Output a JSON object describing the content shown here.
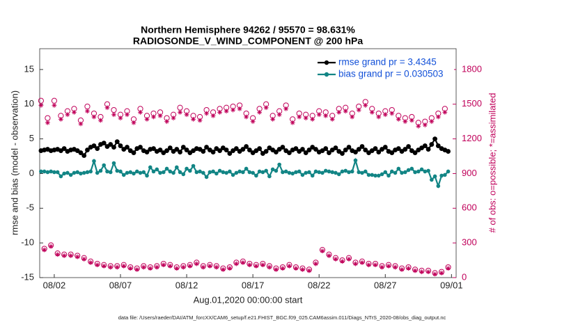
{
  "chart_data": {
    "type": "line",
    "title": "Northern Hemisphere 94262 / 95570 = 98.631%",
    "subtitle": "RADIOSONDE_V_WIND_COMPONENT @ 200 hPa",
    "xlabel": "Aug.01,2020 00:00:00 start",
    "ylabel": "rmse and bias (model - observation)",
    "y2label": "# of obs: o=possible; *=assimilated",
    "footnote": "data file: /Users/raeder/DAI/ATM_forcXX/CAM6_setup/f.e21.FHIST_BGC.f09_025.CAM6assim.011/Diags_NTrS_2020-08/obs_diag_output.nc",
    "legend": "upper right",
    "xlim": [
      -0.1,
      31.35
    ],
    "xticks": [
      {
        "value": 1,
        "label": "08/02"
      },
      {
        "value": 6,
        "label": "08/07"
      },
      {
        "value": 11,
        "label": "08/12"
      },
      {
        "value": 16,
        "label": "08/17"
      },
      {
        "value": 21,
        "label": "08/22"
      },
      {
        "value": 26,
        "label": "08/27"
      },
      {
        "value": 31,
        "label": "09/01"
      }
    ],
    "ylim": [
      -15,
      18
    ],
    "yticks": [
      -15,
      -10,
      -5,
      0,
      5,
      10,
      15
    ],
    "y2lim": [
      0,
      1980
    ],
    "y2ticks": [
      0,
      300,
      600,
      900,
      1200,
      1500,
      1800
    ],
    "x": [
      0,
      0.25,
      0.5,
      0.75,
      1,
      1.25,
      1.5,
      1.75,
      2,
      2.25,
      2.5,
      2.75,
      3,
      3.25,
      3.5,
      3.75,
      4,
      4.25,
      4.5,
      4.75,
      5,
      5.25,
      5.5,
      5.75,
      6,
      6.25,
      6.5,
      6.75,
      7,
      7.25,
      7.5,
      7.75,
      8,
      8.25,
      8.5,
      8.75,
      9,
      9.25,
      9.5,
      9.75,
      10,
      10.25,
      10.5,
      10.75,
      11,
      11.25,
      11.5,
      11.75,
      12,
      12.25,
      12.5,
      12.75,
      13,
      13.25,
      13.5,
      13.75,
      14,
      14.25,
      14.5,
      14.75,
      15,
      15.25,
      15.5,
      15.75,
      16,
      16.25,
      16.5,
      16.75,
      17,
      17.25,
      17.5,
      17.75,
      18,
      18.25,
      18.5,
      18.75,
      19,
      19.25,
      19.5,
      19.75,
      20,
      20.25,
      20.5,
      20.75,
      21,
      21.25,
      21.5,
      21.75,
      22,
      22.25,
      22.5,
      22.75,
      23,
      23.25,
      23.5,
      23.75,
      24,
      24.25,
      24.5,
      24.75,
      25,
      25.25,
      25.5,
      25.75,
      26,
      26.25,
      26.5,
      26.75,
      27,
      27.25,
      27.5,
      27.75,
      28,
      28.25,
      28.5,
      28.75,
      29,
      29.25,
      29.5,
      29.75,
      30,
      30.25,
      30.5,
      30.75
    ],
    "series": [
      {
        "name": "rmse grand pr = 3.4345",
        "color": "#000000",
        "marker": "star",
        "values": [
          3.3,
          3.4,
          3.5,
          3.3,
          3.4,
          3.5,
          3.3,
          3.6,
          3.2,
          3.4,
          3.5,
          3.3,
          3.0,
          2.6,
          3.4,
          3.8,
          4.0,
          3.6,
          4.2,
          4.4,
          3.9,
          4.2,
          3.8,
          4.6,
          4.0,
          3.5,
          3.8,
          3.3,
          3.0,
          3.6,
          3.8,
          3.3,
          3.1,
          3.5,
          3.6,
          3.2,
          3.4,
          3.0,
          3.3,
          3.7,
          3.2,
          3.5,
          3.1,
          3.8,
          3.4,
          3.0,
          3.3,
          3.6,
          3.5,
          3.2,
          3.8,
          3.4,
          3.1,
          3.6,
          3.3,
          3.7,
          3.4,
          2.9,
          3.3,
          3.6,
          3.2,
          3.5,
          3.9,
          3.4,
          3.0,
          3.3,
          3.6,
          2.9,
          3.2,
          3.7,
          3.4,
          3.1,
          3.5,
          3.8,
          3.3,
          3.0,
          3.4,
          3.6,
          3.2,
          3.5,
          3.0,
          3.4,
          3.8,
          3.5,
          3.1,
          3.3,
          3.6,
          3.0,
          3.4,
          3.7,
          3.2,
          2.9,
          3.4,
          3.8,
          3.3,
          3.1,
          3.5,
          3.9,
          3.4,
          3.0,
          3.3,
          3.6,
          3.1,
          3.5,
          3.8,
          3.2,
          3.0,
          3.4,
          3.6,
          3.2,
          3.5,
          3.9,
          3.3,
          3.0,
          3.4,
          3.7,
          4.0,
          3.5,
          4.2,
          5.0,
          4.0,
          3.6,
          3.4,
          3.2
        ]
      },
      {
        "name": "bias grand pr = 0.030503",
        "color": "#128585",
        "marker": "dot",
        "values": [
          0.3,
          0.3,
          0.2,
          0.3,
          0.2,
          0.2,
          -0.4,
          0.0,
          0.1,
          -0.2,
          0.1,
          0.2,
          0.0,
          0.1,
          0.2,
          0.3,
          1.8,
          0.1,
          0.4,
          1.2,
          0.3,
          0.2,
          1.5,
          0.4,
          0.3,
          -0.2,
          0.1,
          0.2,
          0.0,
          0.3,
          0.1,
          0.2,
          -0.3,
          0.9,
          0.3,
          0.6,
          0.1,
          0.2,
          0.7,
          0.3,
          0.1,
          0.9,
          0.2,
          -0.1,
          0.7,
          0.4,
          1.1,
          0.2,
          0.3,
          0.1,
          -0.5,
          0.2,
          0.3,
          0.0,
          0.4,
          0.2,
          0.1,
          0.3,
          -0.2,
          0.1,
          0.3,
          0.2,
          0.7,
          0.2,
          0.1,
          -0.3,
          0.3,
          0.2,
          0.4,
          -0.4,
          0.6,
          0.4,
          1.3,
          0.2,
          0.3,
          0.1,
          0.0,
          0.2,
          0.3,
          -0.2,
          0.1,
          0.2,
          -0.3,
          0.3,
          0.2,
          0.1,
          0.4,
          0.3,
          0.2,
          0.1,
          -0.1,
          0.3,
          0.4,
          0.2,
          0.3,
          1.9,
          0.2,
          0.1,
          0.3,
          -0.2,
          -0.2,
          -0.3,
          -0.3,
          -0.1,
          0.2,
          -0.3,
          0.3,
          0.1,
          0.7,
          0.1,
          0.2,
          0.5,
          0.7,
          0.2,
          0.3,
          0.6,
          0.3,
          0.4,
          -0.9,
          -0.4,
          -1.8,
          -0.3,
          -0.2,
          0.3
        ]
      },
      {
        "color": "#c0005a",
        "marker": "circle",
        "axis": "y2",
        "values": [
          1530,
          250,
          1380,
          280,
          1530,
          210,
          1400,
          200,
          1440,
          200,
          1460,
          190,
          1360,
          170,
          1480,
          140,
          1420,
          120,
          1390,
          110,
          1500,
          100,
          1450,
          100,
          1410,
          110,
          1440,
          90,
          1370,
          80,
          1460,
          100,
          1400,
          90,
          1420,
          100,
          1430,
          120,
          1380,
          110,
          1410,
          90,
          1470,
          100,
          1440,
          110,
          1400,
          130,
          1390,
          100,
          1450,
          110,
          1430,
          100,
          1460,
          80,
          1470,
          90,
          1480,
          130,
          1490,
          140,
          1420,
          120,
          1380,
          110,
          1460,
          120,
          1500,
          100,
          1400,
          80,
          1440,
          90,
          1490,
          110,
          1370,
          90,
          1420,
          80,
          1410,
          70,
          1400,
          130,
          1440,
          240,
          1430,
          200,
          1400,
          170,
          1460,
          150,
          1470,
          170,
          1420,
          130,
          1480,
          140,
          1520,
          120,
          1460,
          120,
          1420,
          100,
          1440,
          110,
          1450,
          100,
          1400,
          80,
          1380,
          90,
          1390,
          70,
          1340,
          60,
          1350,
          60,
          1380,
          40,
          1420,
          50,
          1460,
          90
        ]
      },
      {
        "color": "#c0005a",
        "marker": "asterisk",
        "axis": "y2",
        "values": [
          1490,
          240,
          1340,
          270,
          1490,
          200,
          1370,
          190,
          1410,
          190,
          1430,
          180,
          1330,
          160,
          1440,
          130,
          1390,
          110,
          1360,
          100,
          1470,
          90,
          1410,
          90,
          1380,
          100,
          1410,
          80,
          1340,
          70,
          1430,
          90,
          1370,
          80,
          1390,
          90,
          1400,
          110,
          1350,
          100,
          1380,
          80,
          1430,
          90,
          1410,
          100,
          1370,
          120,
          1360,
          90,
          1420,
          100,
          1400,
          90,
          1430,
          70,
          1440,
          80,
          1450,
          120,
          1460,
          130,
          1390,
          110,
          1350,
          100,
          1430,
          110,
          1470,
          90,
          1370,
          70,
          1410,
          80,
          1460,
          100,
          1340,
          80,
          1390,
          70,
          1380,
          60,
          1370,
          120,
          1410,
          230,
          1400,
          190,
          1370,
          160,
          1430,
          140,
          1440,
          160,
          1390,
          120,
          1450,
          130,
          1490,
          110,
          1430,
          110,
          1390,
          90,
          1410,
          100,
          1420,
          90,
          1370,
          70,
          1350,
          80,
          1360,
          60,
          1310,
          50,
          1320,
          50,
          1350,
          30,
          1390,
          40,
          1430,
          80
        ]
      }
    ]
  }
}
